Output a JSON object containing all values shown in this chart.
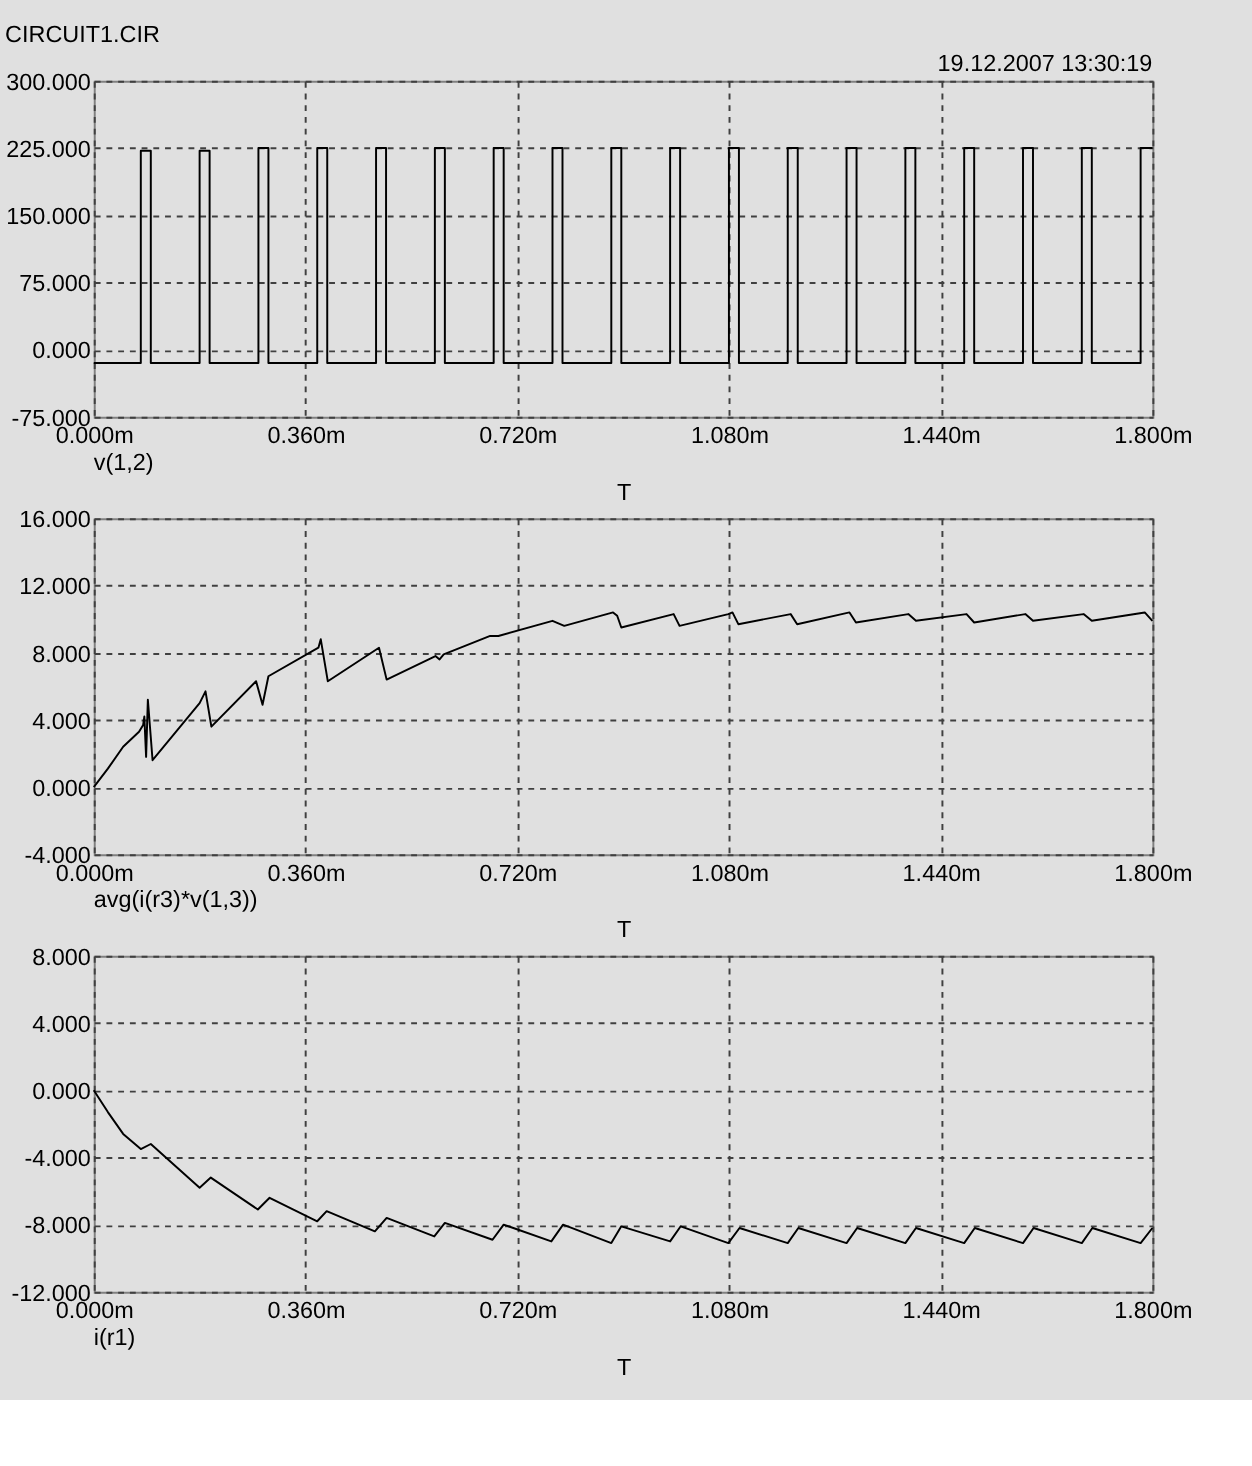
{
  "chart_data": [
    {
      "type": "line",
      "title": "CIRCUIT1.CIR",
      "annotations": [
        "19.12.2007 13:30:19"
      ],
      "xlabel": "T",
      "grid": true,
      "xlim": [
        0,
        1.8
      ],
      "xticks": [
        {
          "value": 0,
          "label": "0.000m"
        },
        {
          "value": 0.36,
          "label": "0.360m"
        },
        {
          "value": 0.72,
          "label": "0.720m"
        },
        {
          "value": 1.08,
          "label": "1.080m"
        },
        {
          "value": 1.44,
          "label": "1.440m"
        },
        {
          "value": 1.8,
          "label": "1.800m"
        }
      ],
      "ylim": [
        -75,
        300
      ],
      "yticks": [
        {
          "value": -75,
          "label": "-75.000"
        },
        {
          "value": 0,
          "label": "0.000"
        },
        {
          "value": 75,
          "label": "75.000"
        },
        {
          "value": 150,
          "label": "150.000"
        },
        {
          "value": 225,
          "label": "225.000"
        },
        {
          "value": 300,
          "label": "300.000"
        }
      ],
      "series": [
        {
          "name": "v(1,2)",
          "color": "#000000",
          "x": [
            0,
            0.08,
            0.08,
            0.097,
            0.097,
            0.18,
            0.18,
            0.197,
            0.197,
            0.28,
            0.28,
            0.297,
            0.297,
            0.38,
            0.38,
            0.397,
            0.397,
            0.48,
            0.48,
            0.497,
            0.497,
            0.58,
            0.58,
            0.597,
            0.597,
            0.68,
            0.68,
            0.697,
            0.697,
            0.78,
            0.78,
            0.797,
            0.797,
            0.88,
            0.88,
            0.897,
            0.897,
            0.98,
            0.98,
            0.997,
            0.997,
            1.08,
            1.08,
            1.097,
            1.097,
            1.18,
            1.18,
            1.197,
            1.197,
            1.28,
            1.28,
            1.297,
            1.297,
            1.38,
            1.38,
            1.397,
            1.397,
            1.48,
            1.48,
            1.497,
            1.497,
            1.58,
            1.58,
            1.597,
            1.597,
            1.68,
            1.68,
            1.697,
            1.697,
            1.78,
            1.78,
            1.8
          ],
          "values": [
            -15,
            -15,
            222,
            222,
            -15,
            -15,
            222,
            222,
            -15,
            -15,
            225,
            225,
            -15,
            -15,
            225,
            225,
            -15,
            -15,
            225,
            225,
            -15,
            -15,
            225,
            225,
            -15,
            -15,
            225,
            225,
            -15,
            -15,
            225,
            225,
            -15,
            -15,
            225,
            225,
            -15,
            -15,
            225,
            225,
            -15,
            -15,
            225,
            225,
            -15,
            -15,
            225,
            225,
            -15,
            -15,
            225,
            225,
            -15,
            -15,
            225,
            225,
            -15,
            -15,
            225,
            225,
            -15,
            -15,
            225,
            225,
            -15,
            -15,
            225,
            225,
            -15,
            -15,
            225,
            225
          ]
        }
      ]
    },
    {
      "type": "line",
      "xlabel": "T",
      "grid": true,
      "xlim": [
        0,
        1.8
      ],
      "xticks": [
        {
          "value": 0,
          "label": "0.000m"
        },
        {
          "value": 0.36,
          "label": "0.360m"
        },
        {
          "value": 0.72,
          "label": "0.720m"
        },
        {
          "value": 1.08,
          "label": "1.080m"
        },
        {
          "value": 1.44,
          "label": "1.440m"
        },
        {
          "value": 1.8,
          "label": "1.800m"
        }
      ],
      "ylim": [
        -4,
        16
      ],
      "yticks": [
        {
          "value": -4,
          "label": "-4.000"
        },
        {
          "value": 0,
          "label": "0.000"
        },
        {
          "value": 4,
          "label": "4.000"
        },
        {
          "value": 8,
          "label": "8.000"
        },
        {
          "value": 12,
          "label": "12.000"
        },
        {
          "value": 16,
          "label": "16.000"
        }
      ],
      "series": [
        {
          "name": "avg(i(r3)*v(1,3))",
          "color": "#000000",
          "x": [
            0,
            0.024,
            0.05,
            0.077,
            0.084,
            0.086,
            0.089,
            0.092,
            0.1,
            0.18,
            0.19,
            0.2,
            0.276,
            0.287,
            0.297,
            0.382,
            0.386,
            0.398,
            0.485,
            0.498,
            0.581,
            0.588,
            0.595,
            0.674,
            0.688,
            0.78,
            0.8,
            0.883,
            0.89,
            0.897,
            0.986,
            0.996,
            1.079,
            1.086,
            1.096,
            1.185,
            1.196,
            1.285,
            1.296,
            1.385,
            1.398,
            1.484,
            1.497,
            1.584,
            1.597,
            1.683,
            1.697,
            1.787,
            1.8
          ],
          "values": [
            0,
            1.1,
            2.4,
            3.3,
            3.7,
            4.2,
            1.8,
            5.2,
            1.6,
            5.0,
            5.7,
            3.6,
            6.3,
            4.9,
            6.6,
            8.3,
            8.8,
            6.3,
            8.3,
            6.4,
            7.8,
            7.6,
            7.9,
            9.0,
            9.0,
            9.9,
            9.6,
            10.4,
            10.2,
            9.5,
            10.3,
            9.6,
            10.3,
            10.4,
            9.7,
            10.3,
            9.7,
            10.4,
            9.8,
            10.3,
            9.9,
            10.3,
            9.8,
            10.3,
            9.9,
            10.3,
            9.9,
            10.4,
            9.9
          ]
        }
      ]
    },
    {
      "type": "line",
      "xlabel": "T",
      "grid": true,
      "xlim": [
        0,
        1.8
      ],
      "xticks": [
        {
          "value": 0,
          "label": "0.000m"
        },
        {
          "value": 0.36,
          "label": "0.360m"
        },
        {
          "value": 0.72,
          "label": "0.720m"
        },
        {
          "value": 1.08,
          "label": "1.080m"
        },
        {
          "value": 1.44,
          "label": "1.440m"
        },
        {
          "value": 1.8,
          "label": "1.800m"
        }
      ],
      "ylim": [
        -12,
        8
      ],
      "yticks": [
        {
          "value": -12,
          "label": "-12.000"
        },
        {
          "value": -8,
          "label": "-8.000"
        },
        {
          "value": -4,
          "label": "-4.000"
        },
        {
          "value": 0,
          "label": "0.000"
        },
        {
          "value": 4,
          "label": "4.000"
        },
        {
          "value": 8,
          "label": "8.000"
        }
      ],
      "series": [
        {
          "name": "i(r1)",
          "color": "#000000",
          "x": [
            0,
            0.024,
            0.05,
            0.08,
            0.097,
            0.18,
            0.199,
            0.279,
            0.299,
            0.38,
            0.396,
            0.478,
            0.498,
            0.579,
            0.597,
            0.678,
            0.697,
            0.778,
            0.798,
            0.88,
            0.897,
            0.98,
            0.998,
            1.079,
            1.098,
            1.18,
            1.198,
            1.28,
            1.298,
            1.38,
            1.398,
            1.48,
            1.498,
            1.58,
            1.598,
            1.68,
            1.698,
            1.78,
            1.8
          ],
          "values": [
            0,
            -1.3,
            -2.6,
            -3.5,
            -3.2,
            -5.8,
            -5.2,
            -7.1,
            -6.4,
            -7.8,
            -7.2,
            -8.4,
            -7.6,
            -8.7,
            -7.9,
            -8.9,
            -8.0,
            -9.0,
            -8.0,
            -9.1,
            -8.1,
            -9.0,
            -8.1,
            -9.1,
            -8.2,
            -9.1,
            -8.2,
            -9.1,
            -8.2,
            -9.1,
            -8.2,
            -9.1,
            -8.2,
            -9.1,
            -8.2,
            -9.1,
            -8.2,
            -9.1,
            -8.2
          ]
        }
      ]
    }
  ]
}
